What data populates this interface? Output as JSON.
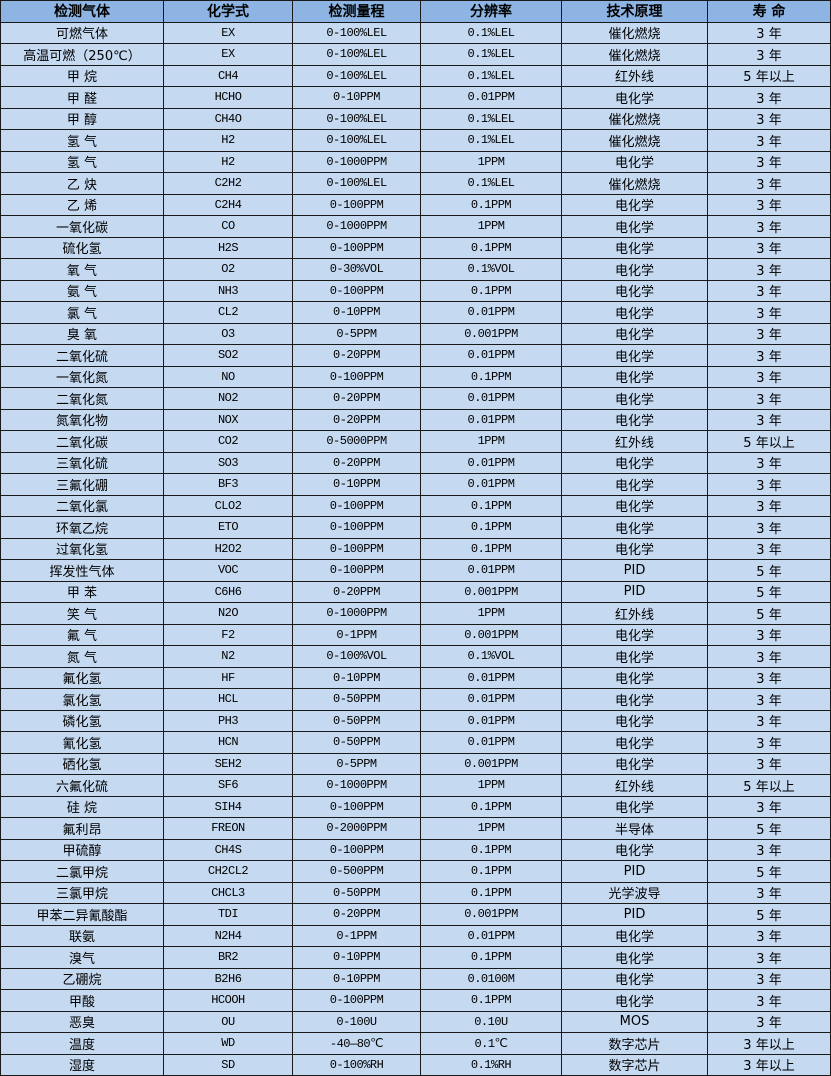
{
  "colors": {
    "header_bg": "#8db4e2",
    "row_bg": "#c5d9f1",
    "border": "#1a1a1a"
  },
  "headers": [
    "检测气体",
    "化学式",
    "检测量程",
    "分辨率",
    "技术原理",
    "寿 命"
  ],
  "rows": [
    [
      "可燃气体",
      "EX",
      "0-100%LEL",
      "0.1%LEL",
      "催化燃烧",
      "3 年"
    ],
    [
      "高温可燃（250℃）",
      "EX",
      "0-100%LEL",
      "0.1%LEL",
      "催化燃烧",
      "3 年"
    ],
    [
      "甲 烷",
      "CH4",
      "0-100%LEL",
      "0.1%LEL",
      "红外线",
      "5 年以上"
    ],
    [
      "甲 醛",
      "HCHO",
      "0-10PPM",
      "0.01PPM",
      "电化学",
      "3 年"
    ],
    [
      "甲 醇",
      "CH4O",
      "0-100%LEL",
      "0.1%LEL",
      "催化燃烧",
      "3 年"
    ],
    [
      "氢 气",
      "H2",
      "0-100%LEL",
      "0.1%LEL",
      "催化燃烧",
      "3 年"
    ],
    [
      "氢 气",
      "H2",
      "0-1000PPM",
      "1PPM",
      "电化学",
      "3 年"
    ],
    [
      "乙 炔",
      "C2H2",
      "0-100%LEL",
      "0.1%LEL",
      "催化燃烧",
      "3 年"
    ],
    [
      "乙 烯",
      "C2H4",
      "0-100PPM",
      "0.1PPM",
      "电化学",
      "3 年"
    ],
    [
      "一氧化碳",
      "CO",
      "0-1000PPM",
      "1PPM",
      "电化学",
      "3 年"
    ],
    [
      "硫化氢",
      "H2S",
      "0-100PPM",
      "0.1PPM",
      "电化学",
      "3 年"
    ],
    [
      "氧 气",
      "O2",
      "0-30%VOL",
      "0.1%VOL",
      "电化学",
      "3 年"
    ],
    [
      "氨 气",
      "NH3",
      "0-100PPM",
      "0.1PPM",
      "电化学",
      "3 年"
    ],
    [
      "氯 气",
      "CL2",
      "0-10PPM",
      "0.01PPM",
      "电化学",
      "3 年"
    ],
    [
      "臭 氧",
      "O3",
      "0-5PPM",
      "0.001PPM",
      "电化学",
      "3 年"
    ],
    [
      "二氧化硫",
      "SO2",
      "0-20PPM",
      "0.01PPM",
      "电化学",
      "3 年"
    ],
    [
      "一氧化氮",
      "NO",
      "0-100PPM",
      "0.1PPM",
      "电化学",
      "3 年"
    ],
    [
      "二氧化氮",
      "NO2",
      "0-20PPM",
      "0.01PPM",
      "电化学",
      "3 年"
    ],
    [
      "氮氧化物",
      "NOX",
      "0-20PPM",
      "0.01PPM",
      "电化学",
      "3 年"
    ],
    [
      "二氧化碳",
      "CO2",
      "0-5000PPM",
      "1PPM",
      "红外线",
      "5 年以上"
    ],
    [
      "三氧化硫",
      "SO3",
      "0-20PPM",
      "0.01PPM",
      "电化学",
      "3 年"
    ],
    [
      "三氟化硼",
      "BF3",
      "0-10PPM",
      "0.01PPM",
      "电化学",
      "3 年"
    ],
    [
      "二氧化氯",
      "CLO2",
      "0-100PPM",
      "0.1PPM",
      "电化学",
      "3 年"
    ],
    [
      "环氧乙烷",
      "ETO",
      "0-100PPM",
      "0.1PPM",
      "电化学",
      "3 年"
    ],
    [
      "过氧化氢",
      "H2O2",
      "0-100PPM",
      "0.1PPM",
      "电化学",
      "3 年"
    ],
    [
      "挥发性气体",
      "VOC",
      "0-100PPM",
      "0.01PPM",
      "PID",
      "5 年"
    ],
    [
      "甲 苯",
      "C6H6",
      "0-20PPM",
      "0.001PPM",
      "PID",
      "5 年"
    ],
    [
      "笑 气",
      "N2O",
      "0-1000PPM",
      "1PPM",
      "红外线",
      "5 年"
    ],
    [
      "氟 气",
      "F2",
      "0-1PPM",
      "0.001PPM",
      "电化学",
      "3 年"
    ],
    [
      "氮 气",
      "N2",
      "0-100%VOL",
      "0.1%VOL",
      "电化学",
      "3 年"
    ],
    [
      "氟化氢",
      "HF",
      "0-10PPM",
      "0.01PPM",
      "电化学",
      "3 年"
    ],
    [
      "氯化氢",
      "HCL",
      "0-50PPM",
      "0.01PPM",
      "电化学",
      "3 年"
    ],
    [
      "磷化氢",
      "PH3",
      "0-50PPM",
      "0.01PPM",
      "电化学",
      "3 年"
    ],
    [
      "氰化氢",
      "HCN",
      "0-50PPM",
      "0.01PPM",
      "电化学",
      "3 年"
    ],
    [
      "硒化氢",
      "SEH2",
      "0-5PPM",
      "0.001PPM",
      "电化学",
      "3 年"
    ],
    [
      "六氟化硫",
      "SF6",
      "0-1000PPM",
      "1PPM",
      "红外线",
      "5 年以上"
    ],
    [
      "硅 烷",
      "SIH4",
      "0-100PPM",
      "0.1PPM",
      "电化学",
      "3 年"
    ],
    [
      "氟利昂",
      "FREON",
      "0-2000PPM",
      "1PPM",
      "半导体",
      "5 年"
    ],
    [
      "甲硫醇",
      "CH4S",
      "0-100PPM",
      "0.1PPM",
      "电化学",
      "3 年"
    ],
    [
      "二氯甲烷",
      "CH2CL2",
      "0-500PPM",
      "0.1PPM",
      "PID",
      "5 年"
    ],
    [
      "三氯甲烷",
      "CHCL3",
      "0-50PPM",
      "0.1PPM",
      "光学波导",
      "3 年"
    ],
    [
      "甲苯二异氰酸酯",
      "TDI",
      "0-20PPM",
      "0.001PPM",
      "PID",
      "5 年"
    ],
    [
      "联氨",
      "N2H4",
      "0-1PPM",
      "0.01PPM",
      "电化学",
      "3 年"
    ],
    [
      "溴气",
      "BR2",
      "0-10PPM",
      "0.1PPM",
      "电化学",
      "3 年"
    ],
    [
      "乙硼烷",
      "B2H6",
      "0-10PPM",
      "0.0100M",
      "电化学",
      "3 年"
    ],
    [
      "甲酸",
      "HCOOH",
      "0-100PPM",
      "0.1PPM",
      "电化学",
      "3 年"
    ],
    [
      "恶臭",
      "OU",
      "0-100U",
      "0.10U",
      "MOS",
      "3 年"
    ],
    [
      "温度",
      "WD",
      "-40—80℃",
      "0.1℃",
      "数字芯片",
      "3 年以上"
    ],
    [
      "湿度",
      "SD",
      "0-100%RH",
      "0.1%RH",
      "数字芯片",
      "3 年以上"
    ]
  ]
}
